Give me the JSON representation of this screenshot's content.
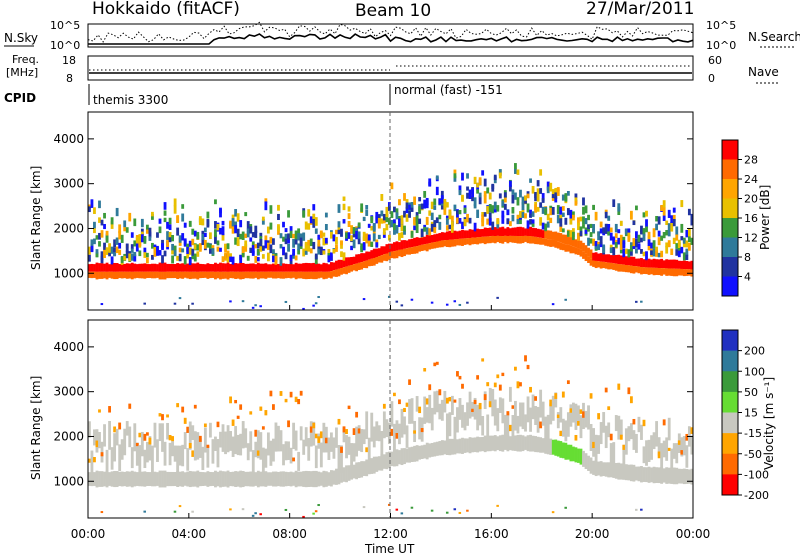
{
  "header": {
    "station": "Hokkaido (fitACF)",
    "beam": "Beam 10",
    "date": "27/Mar/2011"
  },
  "strips": {
    "nsky_label": "N.Sky",
    "nsky_ticks": [
      "10^5",
      "10^0"
    ],
    "nsearch_label": "N.Search",
    "nsearch_ticks": [
      "10^5",
      "10^0"
    ],
    "freq_label_1": "Freq.",
    "freq_label_2": "[MHz]",
    "freq_ticks": [
      "18",
      "8"
    ],
    "nave_label": "Nave",
    "nave_ticks": [
      "60",
      "0"
    ],
    "cpid_label": "CPID",
    "cpid_modes": [
      {
        "name": "themis 3300",
        "start_hour": 0
      },
      {
        "name": "normal (fast) -151",
        "start_hour": 12
      }
    ]
  },
  "chart_data": [
    {
      "type": "heatmap",
      "title": "",
      "xlabel": "Time UT",
      "ylabel": "Slant Range [km]",
      "xlim_hours": [
        0,
        24
      ],
      "ylim_km": [
        180,
        4600
      ],
      "x_tick_labels": [
        "00:00",
        "04:00",
        "08:00",
        "12:00",
        "16:00",
        "20:00",
        "00:00"
      ],
      "y_tick_labels": [
        "1000",
        "2000",
        "3000",
        "4000"
      ],
      "y_tick_values": [
        1000,
        2000,
        3000,
        4000
      ],
      "colorbar": {
        "label": "Power [dB]",
        "ticks": [
          "28",
          "24",
          "20",
          "16",
          "12",
          "8",
          "4"
        ],
        "colors": [
          "#ff0000",
          "#ff6a00",
          "#ffa500",
          "#e8c000",
          "#3a9a3a",
          "#2f7a9a",
          "#2033a0",
          "#1010ff"
        ]
      },
      "bands": [
        {
          "name": "main",
          "hours": [
            0,
            4,
            6,
            8,
            9.5,
            11,
            12,
            14,
            16,
            17.5,
            18.5,
            19.5,
            20,
            22,
            24
          ],
          "km": [
            1050,
            1050,
            1050,
            1050,
            1050,
            1300,
            1500,
            1750,
            1850,
            1850,
            1750,
            1550,
            1300,
            1150,
            1100
          ],
          "power": "high"
        }
      ]
    },
    {
      "type": "heatmap",
      "title": "",
      "xlabel": "Time UT",
      "ylabel": "Slant Range [km]",
      "xlim_hours": [
        0,
        24
      ],
      "ylim_km": [
        180,
        4600
      ],
      "x_tick_labels": [
        "00:00",
        "04:00",
        "08:00",
        "12:00",
        "16:00",
        "20:00",
        "00:00"
      ],
      "y_tick_labels": [
        "1000",
        "2000",
        "3000",
        "4000"
      ],
      "y_tick_values": [
        1000,
        2000,
        3000,
        4000
      ],
      "colorbar": {
        "label": "Velocity [m s⁻¹]",
        "ticks": [
          "200",
          "100",
          "50",
          "15",
          "-15",
          "-50",
          "-100",
          "-200"
        ],
        "colors": [
          "#2030c0",
          "#2f7a9a",
          "#3a9a3a",
          "#66dd33",
          "#c8c8c0",
          "#ffa500",
          "#ff6a00",
          "#ff0000"
        ]
      }
    }
  ]
}
